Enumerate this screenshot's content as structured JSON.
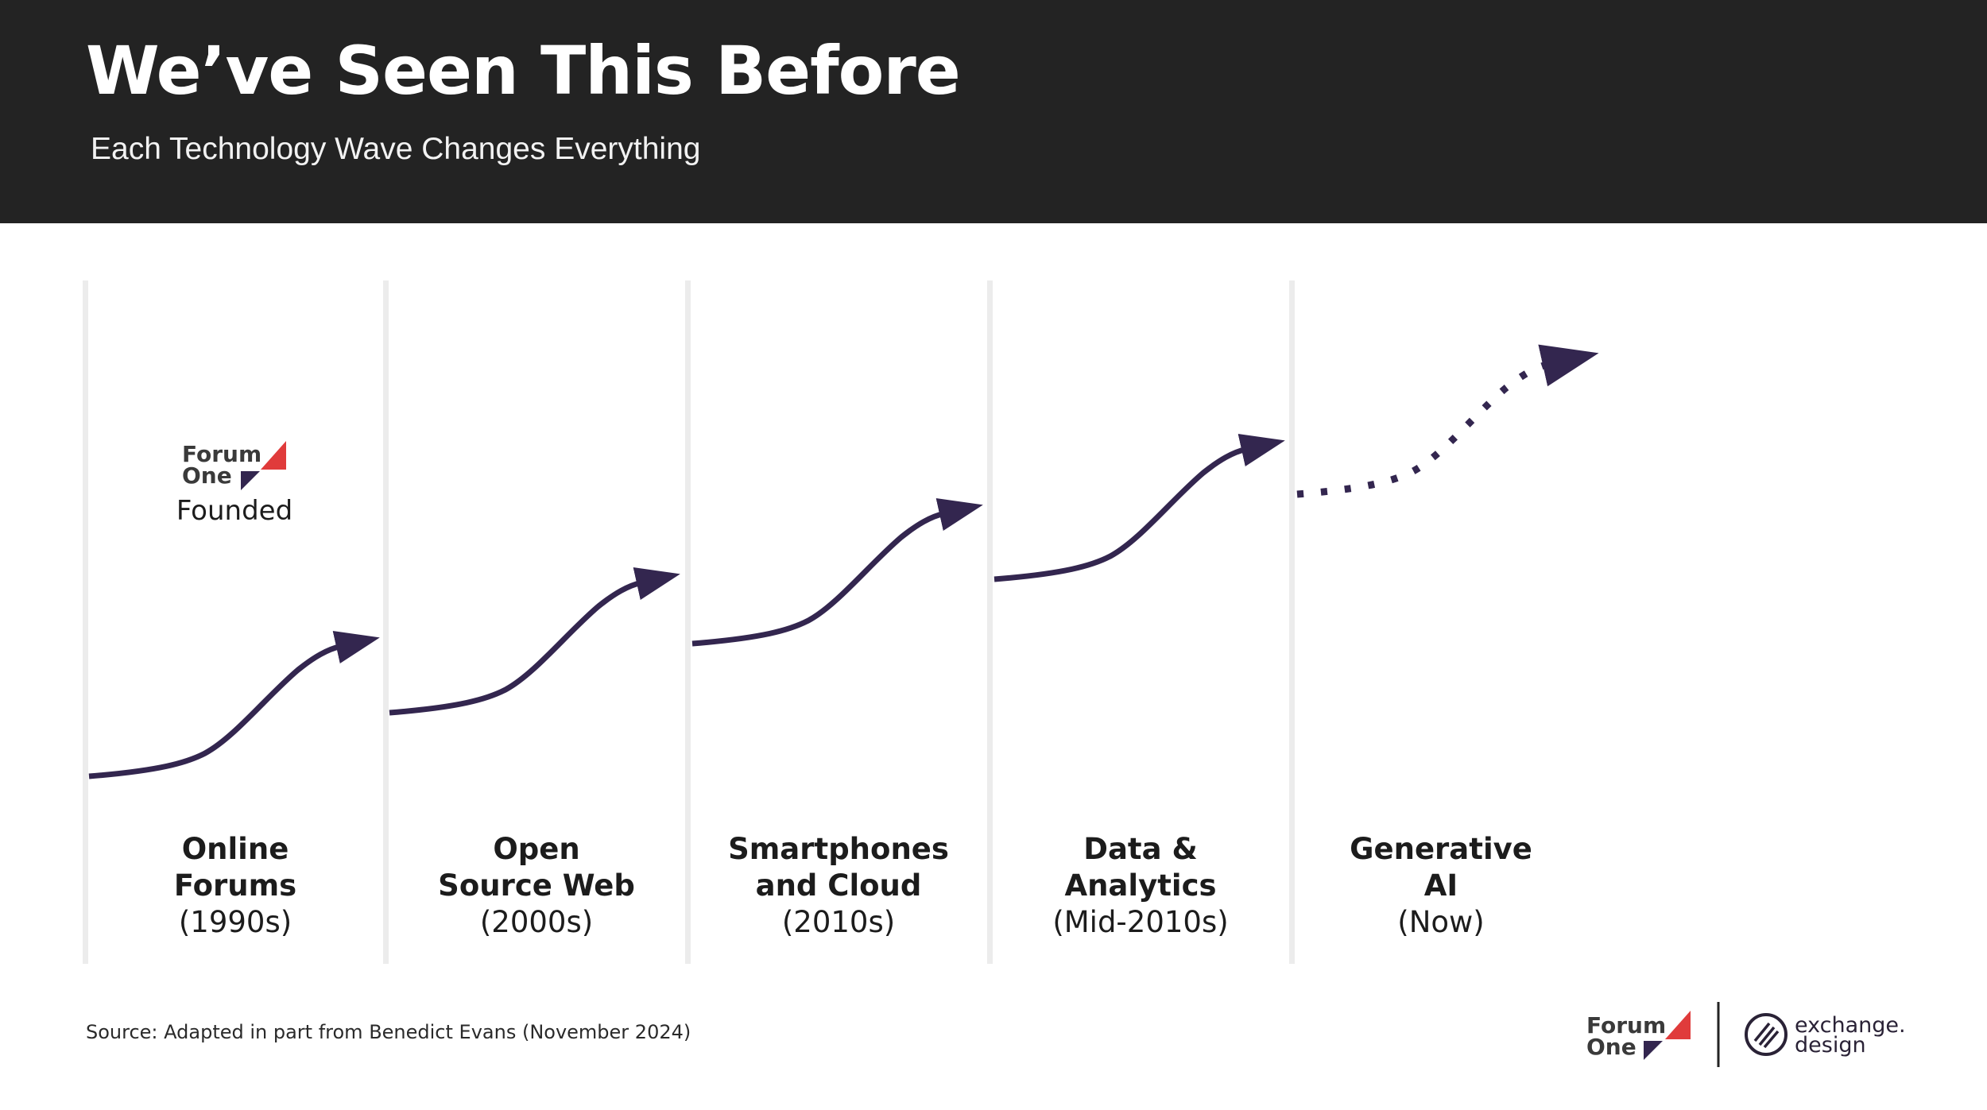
{
  "header": {
    "title": "We’ve Seen This Before",
    "subtitle": "Each Technology Wave Changes Everything"
  },
  "waves": [
    {
      "name_line1": "Online",
      "name_line2": "Forums",
      "period": "(1990s)",
      "curve_style": "solid"
    },
    {
      "name_line1": "Open",
      "name_line2": "Source Web",
      "period": "(2000s)",
      "curve_style": "solid"
    },
    {
      "name_line1": "Smartphones",
      "name_line2": "and Cloud",
      "period": "(2010s)",
      "curve_style": "solid"
    },
    {
      "name_line1": "Data &",
      "name_line2": "Analytics",
      "period": "(Mid-2010s)",
      "curve_style": "solid"
    },
    {
      "name_line1": "Generative",
      "name_line2": "AI",
      "period": "(Now)",
      "curve_style": "dotted"
    }
  ],
  "founded_marker": {
    "logo_line1": "Forum",
    "logo_line2": "One",
    "caption": "Founded"
  },
  "source": "Source: Adapted in part from Benedict Evans (November 2024)",
  "footer": {
    "forum_one_line1": "Forum",
    "forum_one_line2": "One",
    "exchange_line1": "exchange.",
    "exchange_line2": "design"
  },
  "colors": {
    "header_bg": "#232323",
    "curve": "#33264f",
    "accent_red": "#e03b3b",
    "accent_purple": "#33264f",
    "divider": "#ececec"
  }
}
